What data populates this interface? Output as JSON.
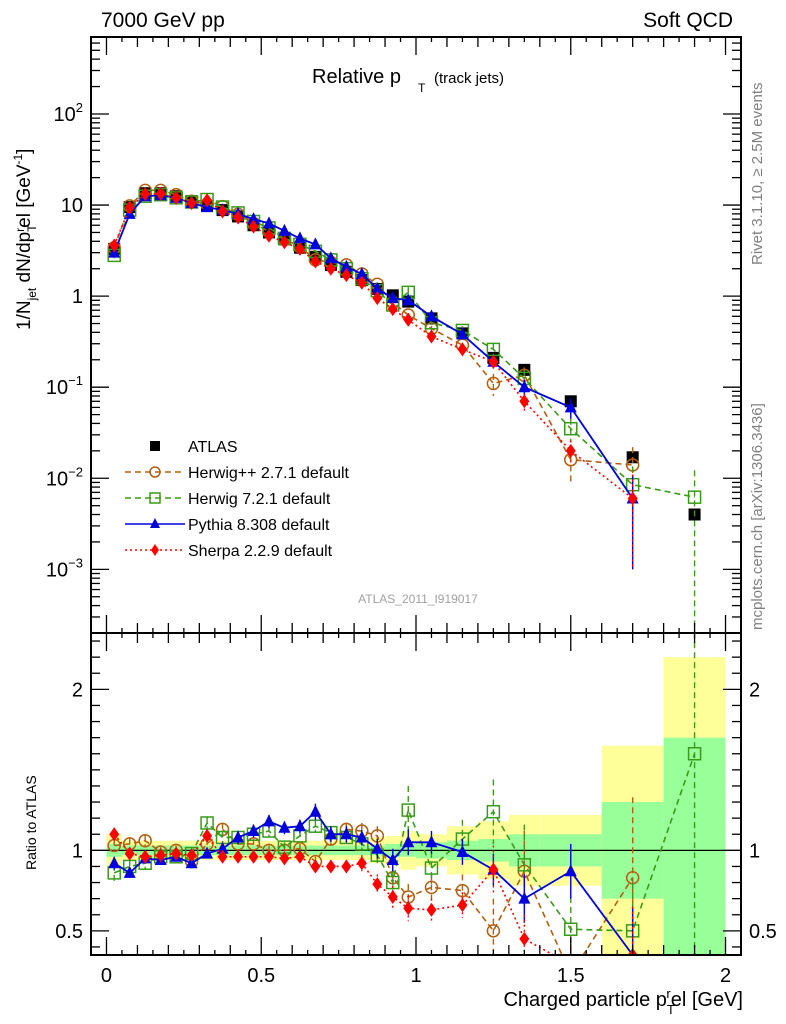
{
  "header": {
    "left": "7000 GeV pp",
    "right": "Soft QCD"
  },
  "side_labels": {
    "rivet": "Rivet 3.1.10, ≥ 2.5M events",
    "mcplots": "mcplots.cern.ch [arXiv:1306.3436]"
  },
  "chart_data": [
    {
      "panel": "main",
      "type": "scatter",
      "title_main": "Relative p",
      "title_sub": "T",
      "title_suffix": "(track jets)",
      "ylabel": "1/N_jet dN/dp_T^rel [GeV^-1]",
      "yscale": "log",
      "ylim": [
        0.0002,
        700
      ],
      "xlim": [
        -0.05,
        2.05
      ],
      "yticks": [
        {
          "value": 0.001,
          "label": "10^-3"
        },
        {
          "value": 0.01,
          "label": "10^-2"
        },
        {
          "value": 0.1,
          "label": "10^-1"
        },
        {
          "value": 1,
          "label": "1"
        },
        {
          "value": 10,
          "label": "10"
        },
        {
          "value": 100,
          "label": "10^2"
        }
      ],
      "analysis_id": "ATLAS_2011_I919017",
      "legend_position": "lower-left",
      "x": [
        0.025,
        0.075,
        0.125,
        0.175,
        0.225,
        0.275,
        0.325,
        0.375,
        0.425,
        0.475,
        0.525,
        0.575,
        0.625,
        0.675,
        0.725,
        0.775,
        0.825,
        0.875,
        0.925,
        0.975,
        1.05,
        1.15,
        1.25,
        1.35,
        1.5,
        1.7,
        1.9
      ],
      "series": [
        {
          "name": "ATLAS",
          "style": "data",
          "color": "#000000",
          "values": [
            3.3,
            9.5,
            13.5,
            13.5,
            12.5,
            11.0,
            9.8,
            8.8,
            7.5,
            6.0,
            5.0,
            4.2,
            3.4,
            2.7,
            2.2,
            1.85,
            1.5,
            1.2,
            1.02,
            0.87,
            0.57,
            0.39,
            0.21,
            0.155,
            0.07,
            0.017,
            0.004
          ]
        },
        {
          "name": "Herwig++ 2.7.1 default",
          "style": "dashed",
          "marker": "circle",
          "color": "#b06010",
          "values": [
            3.4,
            9.8,
            14.5,
            14.5,
            13.0,
            11.0,
            10.2,
            9.6,
            7.9,
            6.3,
            5.1,
            4.2,
            3.5,
            2.5,
            2.35,
            2.2,
            1.75,
            1.35,
            0.85,
            0.62,
            0.44,
            0.29,
            0.11,
            0.135,
            0.016,
            0.014
          ],
          "errors": [
            0.1,
            0.3,
            0.4,
            0.4,
            0.3,
            0.3,
            0.3,
            0.3,
            0.2,
            0.2,
            0.15,
            0.1,
            0.1,
            0.08,
            0.07,
            0.07,
            0.06,
            0.05,
            0.03,
            0.03,
            0.03,
            0.02,
            0.03,
            0.03,
            0.007,
            0.008
          ]
        },
        {
          "name": "Herwig 7.2.1 default",
          "style": "dashed",
          "marker": "square",
          "color": "#3a9a1a",
          "values": [
            2.8,
            8.8,
            12.5,
            13.0,
            12.0,
            10.8,
            11.5,
            9.5,
            8.2,
            6.6,
            5.6,
            4.3,
            3.7,
            3.1,
            2.5,
            2.0,
            1.55,
            1.15,
            0.8,
            1.1,
            0.51,
            0.42,
            0.26,
            0.125,
            0.035,
            0.0085,
            0.0062
          ],
          "errors": [
            0.2,
            0.3,
            0.4,
            0.4,
            0.3,
            0.3,
            0.3,
            0.3,
            0.2,
            0.2,
            0.2,
            0.1,
            0.1,
            0.1,
            0.08,
            0.07,
            0.06,
            0.05,
            0.05,
            0.15,
            0.05,
            0.05,
            0.04,
            0.03,
            0.01,
            0.005,
            0.006
          ]
        },
        {
          "name": "Pythia 8.308 default",
          "style": "solid",
          "marker": "triangle",
          "color": "#0000dd",
          "values": [
            3.0,
            8.0,
            12.5,
            12.8,
            12.0,
            10.5,
            9.5,
            8.8,
            8.0,
            7.0,
            6.3,
            5.2,
            4.3,
            3.7,
            2.6,
            2.1,
            1.75,
            1.2,
            0.95,
            0.9,
            0.6,
            0.38,
            0.19,
            0.1,
            0.06,
            0.006
          ],
          "errors": [
            0.1,
            0.2,
            0.3,
            0.3,
            0.3,
            0.3,
            0.2,
            0.2,
            0.2,
            0.2,
            0.2,
            0.1,
            0.1,
            0.1,
            0.08,
            0.07,
            0.06,
            0.05,
            0.05,
            0.05,
            0.04,
            0.03,
            0.03,
            0.02,
            0.015,
            0.005
          ]
        },
        {
          "name": "Sherpa 2.2.9 default",
          "style": "dotted",
          "marker": "diamond",
          "color": "#ff0000",
          "values": [
            3.6,
            9.4,
            13.2,
            13.3,
            12.0,
            10.5,
            11.3,
            8.5,
            7.3,
            5.8,
            4.6,
            3.9,
            3.3,
            2.4,
            2.0,
            1.7,
            1.4,
            0.95,
            0.72,
            0.55,
            0.36,
            0.26,
            0.19,
            0.07,
            0.02,
            0.006
          ],
          "errors": [
            0.2,
            0.3,
            0.4,
            0.4,
            0.3,
            0.3,
            0.3,
            0.3,
            0.2,
            0.2,
            0.2,
            0.1,
            0.1,
            0.1,
            0.08,
            0.07,
            0.06,
            0.05,
            0.04,
            0.04,
            0.03,
            0.03,
            0.03,
            0.015,
            0.006,
            0.005
          ]
        }
      ]
    },
    {
      "panel": "ratio",
      "type": "scatter",
      "ylabel": "Ratio to ATLAS",
      "xlabel": "Charged particle p_T^rel [GeV]",
      "ylim": [
        0.35,
        2.35
      ],
      "xlim": [
        -0.05,
        2.05
      ],
      "xticks": [
        0,
        0.5,
        1,
        1.5,
        2
      ],
      "xtick_labels": [
        "0",
        "0.5",
        "1",
        "1.5",
        "2"
      ],
      "yticks": [
        0.5,
        1,
        2
      ],
      "ytick_labels": [
        "0.5",
        "1",
        "2"
      ],
      "reference_line": 1,
      "bands": {
        "bin_edges": [
          0,
          0.05,
          0.1,
          0.15,
          0.2,
          0.25,
          0.3,
          0.35,
          0.4,
          0.45,
          0.5,
          0.55,
          0.6,
          0.65,
          0.7,
          0.75,
          0.8,
          0.85,
          0.9,
          0.95,
          1.0,
          1.1,
          1.2,
          1.3,
          1.4,
          1.6,
          1.8,
          2.0
        ],
        "stat_halfwidth": [
          0.04,
          0.03,
          0.03,
          0.03,
          0.03,
          0.03,
          0.03,
          0.03,
          0.03,
          0.03,
          0.03,
          0.03,
          0.03,
          0.03,
          0.03,
          0.03,
          0.03,
          0.03,
          0.04,
          0.04,
          0.05,
          0.06,
          0.07,
          0.1,
          0.1,
          0.3,
          0.7
        ],
        "total_halfwidth": [
          0.1,
          0.06,
          0.06,
          0.06,
          0.06,
          0.06,
          0.06,
          0.06,
          0.06,
          0.06,
          0.06,
          0.06,
          0.06,
          0.06,
          0.06,
          0.06,
          0.06,
          0.08,
          0.09,
          0.12,
          0.1,
          0.15,
          0.18,
          0.22,
          0.22,
          0.65,
          1.2
        ]
      },
      "series": [
        {
          "name": "Herwig++ 2.7.1 default",
          "color": "#b06010",
          "style": "dashed",
          "marker": "circle",
          "values": [
            1.03,
            1.04,
            1.06,
            0.99,
            1.0,
            0.93,
            1.04,
            1.13,
            1.04,
            1.04,
            1.0,
            1.0,
            1.01,
            0.93,
            1.07,
            1.13,
            1.12,
            1.09,
            0.83,
            0.71,
            0.77,
            0.75,
            0.5,
            0.87,
            0.23,
            0.83
          ],
          "errors": [
            0.04,
            0.04,
            0.04,
            0.03,
            0.03,
            0.03,
            0.03,
            0.04,
            0.03,
            0.03,
            0.03,
            0.03,
            0.03,
            0.03,
            0.04,
            0.04,
            0.05,
            0.06,
            0.07,
            0.08,
            0.08,
            0.1,
            0.2,
            0.25,
            0.3,
            0.5
          ]
        },
        {
          "name": "Herwig 7.2.1 default",
          "color": "#3a9a1a",
          "style": "dashed",
          "marker": "square",
          "values": [
            0.86,
            0.9,
            0.92,
            0.96,
            0.96,
            0.98,
            1.17,
            1.08,
            1.08,
            1.1,
            1.12,
            1.02,
            1.09,
            1.15,
            1.11,
            1.08,
            1.04,
            0.97,
            0.8,
            1.25,
            0.89,
            1.07,
            1.24,
            0.91,
            0.51,
            0.5,
            1.6
          ],
          "errors": [
            0.05,
            0.04,
            0.04,
            0.03,
            0.03,
            0.03,
            0.04,
            0.04,
            0.03,
            0.03,
            0.04,
            0.03,
            0.03,
            0.04,
            0.04,
            0.04,
            0.04,
            0.05,
            0.08,
            0.15,
            0.1,
            0.12,
            0.2,
            0.25,
            0.2,
            0.3,
            1.5
          ]
        },
        {
          "name": "Pythia 8.308 default",
          "color": "#0000dd",
          "style": "solid",
          "marker": "triangle",
          "values": [
            0.92,
            0.86,
            0.95,
            0.94,
            0.96,
            0.92,
            0.98,
            1.01,
            1.08,
            1.12,
            1.18,
            1.14,
            1.15,
            1.24,
            1.1,
            1.1,
            1.08,
            1.01,
            0.94,
            1.05,
            1.05,
            0.99,
            0.88,
            0.7,
            0.87,
            0.35
          ],
          "errors": [
            0.04,
            0.03,
            0.03,
            0.03,
            0.03,
            0.03,
            0.03,
            0.03,
            0.04,
            0.04,
            0.04,
            0.04,
            0.04,
            0.05,
            0.05,
            0.05,
            0.05,
            0.06,
            0.07,
            0.08,
            0.07,
            0.08,
            0.1,
            0.15,
            0.17,
            0.3
          ]
        },
        {
          "name": "Sherpa 2.2.9 default",
          "color": "#ff0000",
          "style": "dotted",
          "marker": "diamond",
          "values": [
            1.1,
            0.98,
            0.96,
            0.97,
            0.98,
            0.97,
            1.09,
            0.96,
            0.96,
            0.96,
            0.96,
            0.95,
            0.96,
            0.9,
            0.9,
            0.9,
            0.92,
            0.79,
            0.71,
            0.64,
            0.63,
            0.66,
            0.88,
            0.45,
            0.29,
            0.35
          ],
          "errors": [
            0.04,
            0.04,
            0.03,
            0.03,
            0.03,
            0.03,
            0.04,
            0.03,
            0.03,
            0.03,
            0.03,
            0.03,
            0.03,
            0.04,
            0.04,
            0.04,
            0.05,
            0.06,
            0.07,
            0.08,
            0.07,
            0.08,
            0.15,
            0.15,
            0.15,
            0.3
          ]
        }
      ]
    }
  ]
}
